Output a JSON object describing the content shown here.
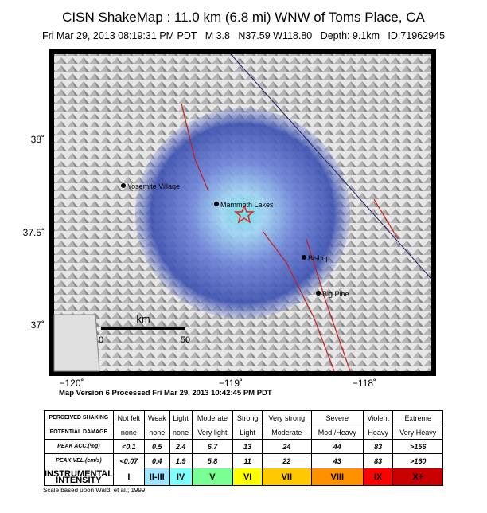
{
  "header": {
    "title": "CISN ShakeMap : 11.0 km (6.8 mi) WNW of Toms Place, CA",
    "subtitle": "Fri Mar 29, 2013 08:19:31 PM PDT   M 3.8   N37.59 W118.80   Depth: 9.1km   ID:71962945"
  },
  "map": {
    "lat_ticks": [
      "38˚",
      "37.5˚",
      "37˚"
    ],
    "lon_ticks": [
      "−120˚",
      "−119˚",
      "−118˚"
    ],
    "places": [
      "Yosemite Village",
      "Mammoth Lakes",
      "Bishop",
      "Big Pine"
    ],
    "scale": {
      "unit": "km",
      "start": "0",
      "end": "50"
    }
  },
  "version": "Map Version 6 Processed Fri Mar 29, 2013 10:42:45 PM PDT",
  "legend": {
    "rows": [
      [
        "PERCEIVED SHAKING",
        "Not felt",
        "Weak",
        "Light",
        "Moderate",
        "Strong",
        "Very strong",
        "Severe",
        "Violent",
        "Extreme"
      ],
      [
        "POTENTIAL DAMAGE",
        "none",
        "none",
        "none",
        "Very light",
        "Light",
        "Moderate",
        "Mod./Heavy",
        "Heavy",
        "Very Heavy"
      ],
      [
        "PEAK ACC.(%g)",
        "<0.1",
        "0.5",
        "2.4",
        "6.7",
        "13",
        "24",
        "44",
        "83",
        ">156"
      ],
      [
        "PEAK VEL.(cm/s)",
        "<0.07",
        "0.4",
        "1.9",
        "5.8",
        "11",
        "22",
        "43",
        "83",
        ">160"
      ],
      [
        "INSTRUMENTAL INTENSITY",
        "I",
        "II-III",
        "IV",
        "V",
        "VI",
        "VII",
        "VIII",
        "IX",
        "X+"
      ]
    ]
  },
  "footnote": "Scale based upon Wald, et al.; 1999"
}
